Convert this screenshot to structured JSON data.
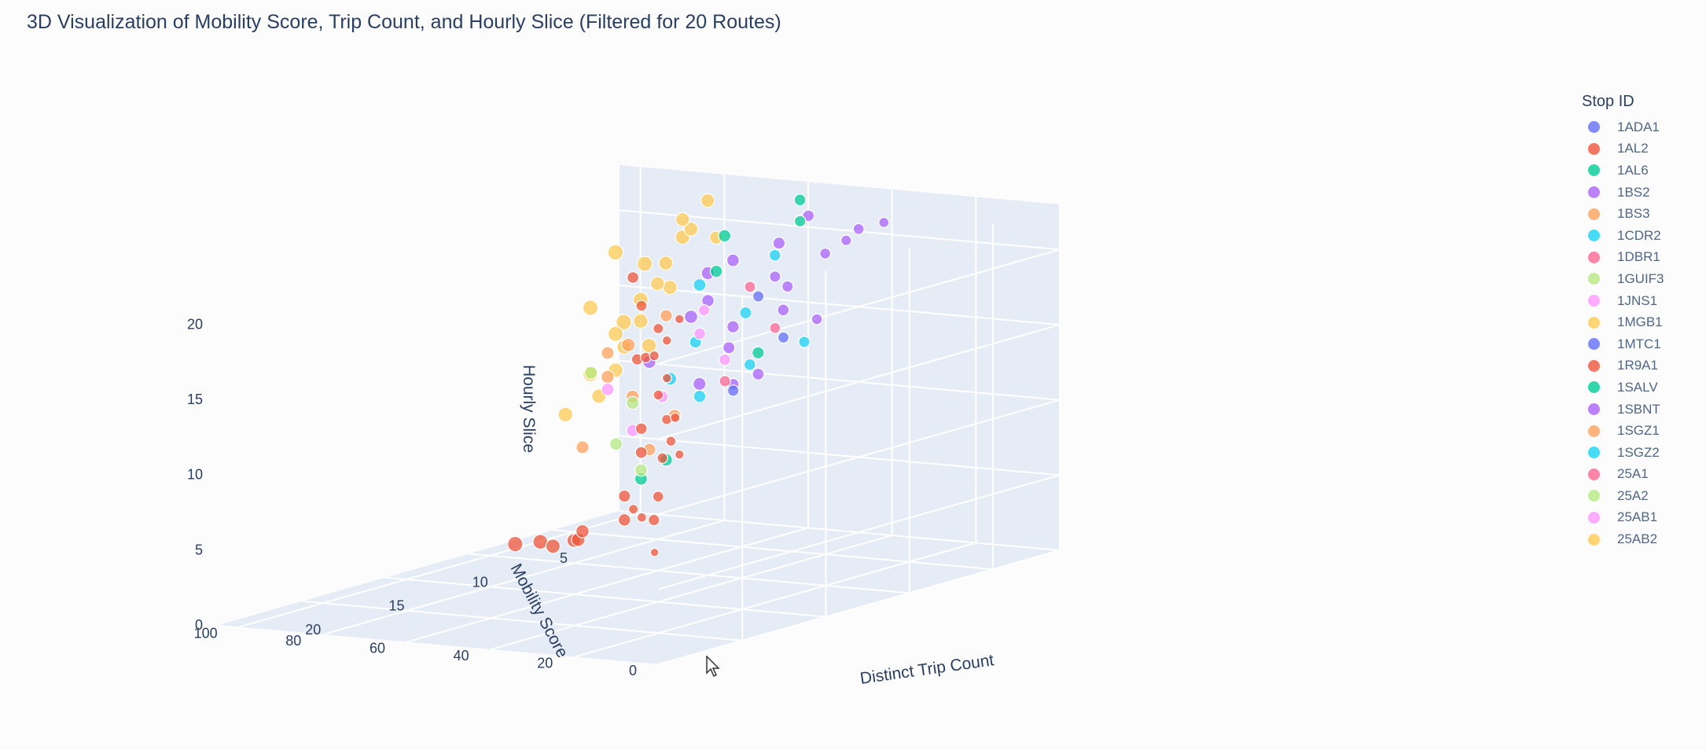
{
  "title": "3D Visualization of Mobility Score, Trip Count, and Hourly Slice (Filtered for 20 Routes)",
  "chart_data": {
    "type": "scatter3d",
    "title": "3D Visualization of Mobility Score, Trip Count, and Hourly Slice (Filtered for 20 Routes)",
    "xlabel": "Distinct Trip Count",
    "ylabel": "Mobility Score",
    "zlabel": "Hourly Slice",
    "x_ticks": [
      5,
      10,
      15,
      20
    ],
    "y_ticks": [
      0,
      20,
      40,
      60,
      80,
      100
    ],
    "z_ticks": [
      0,
      5,
      10,
      15,
      20
    ],
    "xlim": [
      1,
      25
    ],
    "ylim": [
      0,
      105
    ],
    "zlim": [
      0,
      23
    ],
    "legend": {
      "title": "Stop ID",
      "placement": "right",
      "entries": [
        {
          "name": "1ADA1",
          "color": "#636efa"
        },
        {
          "name": "1AL2",
          "color": "#ef553b"
        },
        {
          "name": "1AL6",
          "color": "#00cc96"
        },
        {
          "name": "1BS2",
          "color": "#ab63fa"
        },
        {
          "name": "1BS3",
          "color": "#ffa15a"
        },
        {
          "name": "1CDR2",
          "color": "#19d3f3"
        },
        {
          "name": "1DBR1",
          "color": "#ff6692"
        },
        {
          "name": "1GUIF3",
          "color": "#b6e880"
        },
        {
          "name": "1JNS1",
          "color": "#ff97ff"
        },
        {
          "name": "1MGB1",
          "color": "#fecb52"
        },
        {
          "name": "1MTC1",
          "color": "#636efa"
        },
        {
          "name": "1R9A1",
          "color": "#ef553b"
        },
        {
          "name": "1SALV",
          "color": "#00cc96"
        },
        {
          "name": "1SBNT",
          "color": "#ab63fa"
        },
        {
          "name": "1SGZ1",
          "color": "#ffa15a"
        },
        {
          "name": "1SGZ2",
          "color": "#19d3f3"
        },
        {
          "name": "25A1",
          "color": "#ff6692"
        },
        {
          "name": "25A2",
          "color": "#b6e880"
        },
        {
          "name": "25AB1",
          "color": "#ff97ff"
        },
        {
          "name": "25AB2",
          "color": "#fecb52"
        }
      ]
    },
    "series": [
      {
        "name": "1AL2",
        "points": [
          [
            24,
            5,
            7
          ],
          [
            21,
            20,
            8
          ],
          [
            21,
            22,
            8.5
          ],
          [
            20,
            15,
            12
          ],
          [
            20,
            18,
            17
          ],
          [
            20,
            15,
            21
          ],
          [
            20,
            18,
            19.5
          ],
          [
            19,
            20,
            14
          ],
          [
            19,
            25,
            18
          ],
          [
            18,
            25,
            12
          ],
          [
            17,
            30,
            13
          ],
          [
            17,
            35,
            17
          ],
          [
            16,
            40,
            20
          ],
          [
            15,
            45,
            16
          ],
          [
            14,
            50,
            21
          ],
          [
            14,
            48,
            11
          ],
          [
            13,
            52,
            9
          ],
          [
            13,
            56,
            6
          ],
          [
            12,
            60,
            4
          ],
          [
            12,
            70,
            3
          ],
          [
            11,
            75,
            2
          ],
          [
            10,
            80,
            1.5
          ],
          [
            10,
            85,
            1
          ],
          [
            9,
            92,
            0.8
          ],
          [
            9,
            98,
            0.5
          ],
          [
            16,
            35,
            10
          ],
          [
            15,
            40,
            7
          ],
          [
            14,
            45,
            5
          ],
          [
            18,
            28,
            15
          ],
          [
            17,
            32,
            19
          ]
        ]
      },
      {
        "name": "1BS2",
        "points": [
          [
            5,
            40,
            20
          ],
          [
            6,
            45,
            18
          ],
          [
            5,
            50,
            16
          ],
          [
            7,
            55,
            14
          ],
          [
            6,
            52,
            12
          ],
          [
            4,
            48,
            22
          ],
          [
            5,
            35,
            21
          ],
          [
            7,
            60,
            17
          ],
          [
            6,
            58,
            15
          ],
          [
            5,
            62,
            19
          ],
          [
            8,
            70,
            13
          ],
          [
            6,
            66,
            11
          ],
          [
            4,
            55,
            20
          ],
          [
            5,
            72,
            15
          ],
          [
            7,
            44,
            19
          ],
          [
            3,
            40,
            21
          ],
          [
            4,
            30,
            22
          ],
          [
            6,
            38,
            16
          ],
          [
            8,
            50,
            12
          ],
          [
            5,
            68,
            18
          ]
        ]
      },
      {
        "name": "1BS3",
        "points": [
          [
            9,
            60,
            10
          ],
          [
            10,
            62,
            8
          ],
          [
            11,
            68,
            13
          ],
          [
            12,
            64,
            15
          ],
          [
            10,
            58,
            17
          ],
          [
            9,
            70,
            11
          ],
          [
            8,
            75,
            14
          ],
          [
            13,
            66,
            9
          ]
        ]
      },
      {
        "name": "1MGB1",
        "points": [
          [
            3,
            80,
            20
          ],
          [
            4,
            82,
            18
          ],
          [
            3,
            85,
            16
          ],
          [
            4,
            88,
            14
          ],
          [
            3,
            90,
            12
          ],
          [
            2,
            86,
            19
          ],
          [
            3,
            92,
            15
          ],
          [
            4,
            94,
            13
          ],
          [
            5,
            90,
            11
          ],
          [
            2,
            95,
            17
          ],
          [
            3,
            98,
            18
          ],
          [
            4,
            78,
            21
          ],
          [
            6,
            84,
            13
          ],
          [
            5,
            80,
            17
          ],
          [
            7,
            86,
            10
          ],
          [
            8,
            90,
            9
          ],
          [
            2,
            100,
            13
          ],
          [
            3,
            76,
            22
          ],
          [
            6,
            92,
            11
          ],
          [
            5,
            96,
            15
          ],
          [
            4,
            70,
            20
          ]
        ]
      },
      {
        "name": "1CDR2",
        "points": [
          [
            6,
            55,
            16
          ],
          [
            7,
            50,
            13
          ],
          [
            8,
            58,
            11
          ],
          [
            5,
            45,
            14
          ],
          [
            7,
            62,
            18
          ],
          [
            9,
            55,
            15
          ],
          [
            6,
            48,
            20
          ],
          [
            8,
            65,
            12
          ]
        ]
      },
      {
        "name": "1AL6",
        "points": [
          [
            4,
            50,
            23
          ],
          [
            5,
            46,
            22
          ],
          [
            6,
            60,
            21
          ],
          [
            9,
            62,
            7
          ],
          [
            7,
            58,
            19
          ],
          [
            10,
            64,
            6
          ],
          [
            5,
            56,
            13
          ]
        ]
      },
      {
        "name": "1JNS1",
        "points": [
          [
            10,
            50,
            16
          ],
          [
            11,
            55,
            12
          ],
          [
            12,
            58,
            10
          ],
          [
            9,
            48,
            14
          ],
          [
            13,
            60,
            13
          ],
          [
            11,
            45,
            18
          ]
        ]
      },
      {
        "name": "1GUIF3",
        "points": [
          [
            11,
            60,
            7
          ],
          [
            12,
            62,
            9
          ],
          [
            10,
            66,
            11
          ],
          [
            13,
            64,
            14
          ]
        ]
      },
      {
        "name": "1ADA1",
        "points": [
          [
            7,
            42,
            15
          ],
          [
            8,
            44,
            18
          ],
          [
            9,
            46,
            12
          ]
        ]
      },
      {
        "name": "1DBR1",
        "points": [
          [
            8,
            40,
            16
          ],
          [
            9,
            42,
            19
          ],
          [
            10,
            44,
            13
          ]
        ]
      }
    ]
  },
  "cursor": "mouse-pointer"
}
